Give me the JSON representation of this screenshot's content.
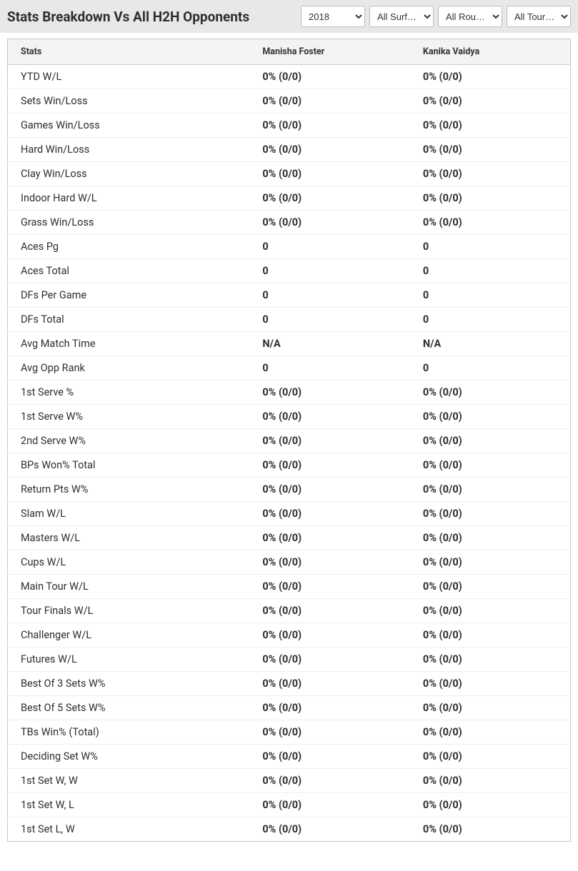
{
  "header": {
    "title": "Stats Breakdown Vs All H2H Opponents"
  },
  "filters": {
    "year": {
      "selected": "2018"
    },
    "surface": {
      "selected": "All Surf…"
    },
    "rounds": {
      "selected": "All Rou…"
    },
    "tour": {
      "selected": "All Tour…"
    }
  },
  "table": {
    "columns": {
      "stats": "Stats",
      "player1": "Manisha Foster",
      "player2": "Kanika Vaidya"
    },
    "rows": [
      {
        "label": "YTD W/L",
        "p1": "0% (0/0)",
        "p2": "0% (0/0)"
      },
      {
        "label": "Sets Win/Loss",
        "p1": "0% (0/0)",
        "p2": "0% (0/0)"
      },
      {
        "label": "Games Win/Loss",
        "p1": "0% (0/0)",
        "p2": "0% (0/0)"
      },
      {
        "label": "Hard Win/Loss",
        "p1": "0% (0/0)",
        "p2": "0% (0/0)"
      },
      {
        "label": "Clay Win/Loss",
        "p1": "0% (0/0)",
        "p2": "0% (0/0)"
      },
      {
        "label": "Indoor Hard W/L",
        "p1": "0% (0/0)",
        "p2": "0% (0/0)"
      },
      {
        "label": "Grass Win/Loss",
        "p1": "0% (0/0)",
        "p2": "0% (0/0)"
      },
      {
        "label": "Aces Pg",
        "p1": "0",
        "p2": "0"
      },
      {
        "label": "Aces Total",
        "p1": "0",
        "p2": "0"
      },
      {
        "label": "DFs Per Game",
        "p1": "0",
        "p2": "0"
      },
      {
        "label": "DFs Total",
        "p1": "0",
        "p2": "0"
      },
      {
        "label": "Avg Match Time",
        "p1": "N/A",
        "p2": "N/A"
      },
      {
        "label": "Avg Opp Rank",
        "p1": "0",
        "p2": "0"
      },
      {
        "label": "1st Serve %",
        "p1": "0% (0/0)",
        "p2": "0% (0/0)"
      },
      {
        "label": "1st Serve W%",
        "p1": "0% (0/0)",
        "p2": "0% (0/0)"
      },
      {
        "label": "2nd Serve W%",
        "p1": "0% (0/0)",
        "p2": "0% (0/0)"
      },
      {
        "label": "BPs Won% Total",
        "p1": "0% (0/0)",
        "p2": "0% (0/0)"
      },
      {
        "label": "Return Pts W%",
        "p1": "0% (0/0)",
        "p2": "0% (0/0)"
      },
      {
        "label": "Slam W/L",
        "p1": "0% (0/0)",
        "p2": "0% (0/0)"
      },
      {
        "label": "Masters W/L",
        "p1": "0% (0/0)",
        "p2": "0% (0/0)"
      },
      {
        "label": "Cups W/L",
        "p1": "0% (0/0)",
        "p2": "0% (0/0)"
      },
      {
        "label": "Main Tour W/L",
        "p1": "0% (0/0)",
        "p2": "0% (0/0)"
      },
      {
        "label": "Tour Finals W/L",
        "p1": "0% (0/0)",
        "p2": "0% (0/0)"
      },
      {
        "label": "Challenger W/L",
        "p1": "0% (0/0)",
        "p2": "0% (0/0)"
      },
      {
        "label": "Futures W/L",
        "p1": "0% (0/0)",
        "p2": "0% (0/0)"
      },
      {
        "label": "Best Of 3 Sets W%",
        "p1": "0% (0/0)",
        "p2": "0% (0/0)"
      },
      {
        "label": "Best Of 5 Sets W%",
        "p1": "0% (0/0)",
        "p2": "0% (0/0)"
      },
      {
        "label": "TBs Win% (Total)",
        "p1": "0% (0/0)",
        "p2": "0% (0/0)"
      },
      {
        "label": "Deciding Set W%",
        "p1": "0% (0/0)",
        "p2": "0% (0/0)"
      },
      {
        "label": "1st Set W, W",
        "p1": "0% (0/0)",
        "p2": "0% (0/0)"
      },
      {
        "label": "1st Set W, L",
        "p1": "0% (0/0)",
        "p2": "0% (0/0)"
      },
      {
        "label": "1st Set L, W",
        "p1": "0% (0/0)",
        "p2": "0% (0/0)"
      }
    ]
  }
}
